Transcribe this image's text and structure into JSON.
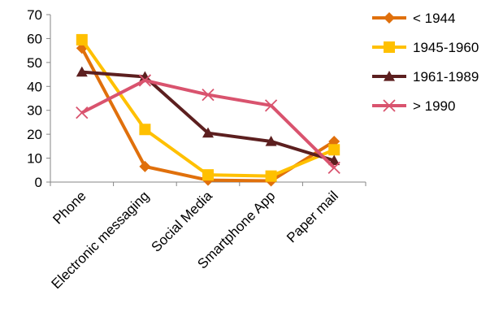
{
  "chart_data": {
    "type": "line",
    "categories": [
      "Phone",
      "Electronic messaging",
      "Social Media",
      "Smartphone App",
      "Paper mail"
    ],
    "ylim": [
      0,
      70
    ],
    "yticks": [
      0,
      10,
      20,
      30,
      40,
      50,
      60,
      70
    ],
    "grid": false,
    "legend_position": "right",
    "series": [
      {
        "name": "< 1944",
        "marker": "diamond",
        "color": "#E0700C",
        "values": [
          56,
          6.5,
          0.8,
          0.5,
          17
        ]
      },
      {
        "name": "1945-1960",
        "marker": "square",
        "color": "#FFC000",
        "values": [
          59.5,
          22,
          3,
          2.5,
          13.5
        ]
      },
      {
        "name": "1961-1989",
        "marker": "triangle",
        "color": "#5C1F1F",
        "values": [
          46,
          44,
          20.5,
          17,
          9
        ]
      },
      {
        "name": "> 1990",
        "marker": "x",
        "color": "#D9536E",
        "values": [
          29,
          42.5,
          36.5,
          32,
          6
        ]
      }
    ]
  }
}
